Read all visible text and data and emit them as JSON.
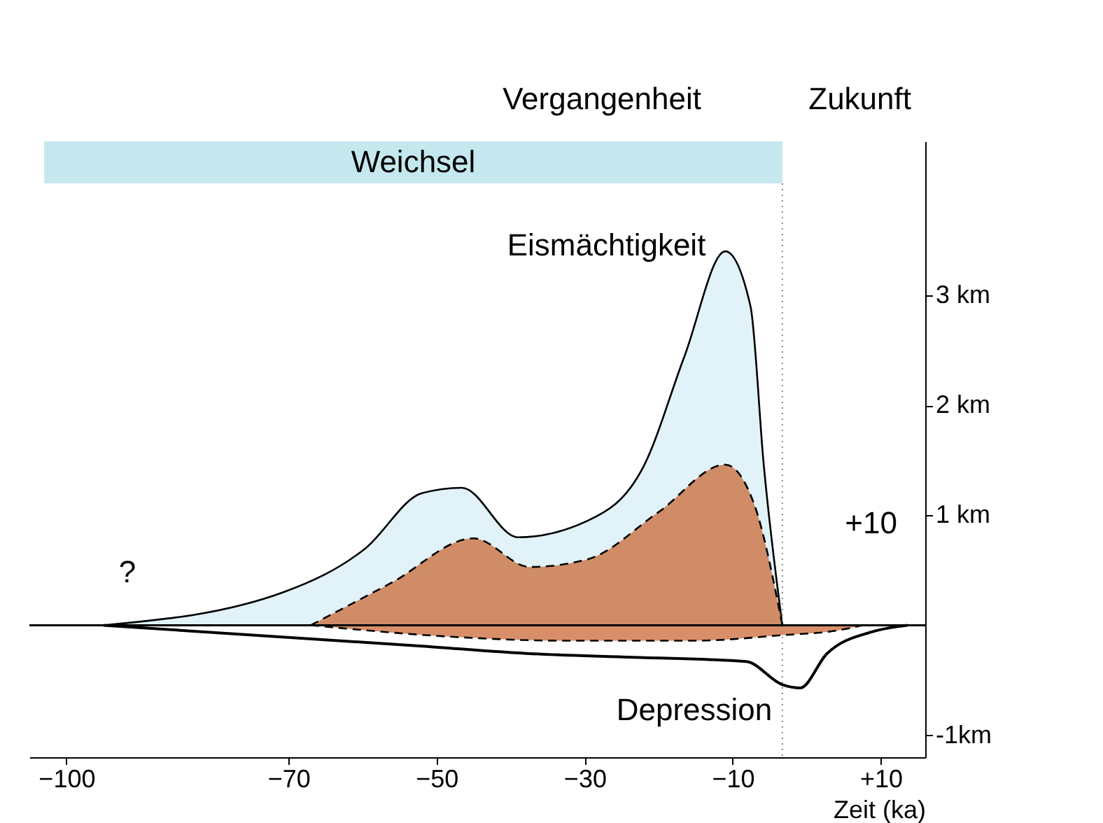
{
  "chart_data": {
    "type": "area",
    "xlabel": "Zeit (ka)",
    "xlim": [
      -105,
      16
    ],
    "xticks": [
      -100,
      -70,
      -50,
      -30,
      -10,
      {
        "value": 10,
        "label": "+10"
      }
    ],
    "ylim": [
      -1.2,
      4.4
    ],
    "yticks": [
      {
        "value": 3,
        "label": "3 km"
      },
      {
        "value": 2,
        "label": "2 km"
      },
      {
        "value": 1,
        "label": "1 km"
      },
      {
        "value": -1,
        "label": "-1km"
      }
    ],
    "series": [
      {
        "name": "Eismächtigkeit",
        "color": "#d4eef6",
        "line_style": "solid",
        "x": [
          -95,
          -70.7,
          -59.6,
          -52,
          -46.6,
          -39,
          -29.6,
          -22,
          -16.5,
          -11,
          -7.6,
          -5.8,
          -3.3
        ],
        "values": [
          0,
          0.3,
          0.7,
          1.2,
          1.25,
          0.8,
          0.95,
          1.45,
          2.45,
          3.4,
          2.9,
          1.45,
          0
        ]
      },
      {
        "color": "#c8602a",
        "line_style": "dashed",
        "x": [
          -67,
          -56,
          -45,
          -37.4,
          -29.6,
          -20,
          -11,
          -7.1,
          -3.3
        ],
        "values": [
          0,
          0.39,
          0.79,
          0.53,
          0.6,
          1.03,
          1.46,
          1.1,
          0
        ]
      },
      {
        "color": "#c8602a",
        "line_style": "dashed",
        "x": [
          -67,
          -46.6,
          -33.4,
          -15,
          -3.3,
          3.9,
          7.6
        ],
        "values": [
          0,
          -0.11,
          -0.14,
          -0.14,
          -0.09,
          -0.05,
          0
        ]
      },
      {
        "name": "Depression",
        "type": "line",
        "color": "#000000",
        "line_style": "solid",
        "x": [
          -95,
          -52,
          -37,
          -24,
          -8.2,
          -3.3,
          -0.9,
          2.7,
          8.8,
          13.6
        ],
        "values": [
          0,
          -0.19,
          -0.26,
          -0.29,
          -0.33,
          -0.54,
          -0.57,
          -0.26,
          -0.06,
          0
        ]
      }
    ],
    "bands": [
      {
        "axis": "x",
        "from": -103,
        "to": -3.3,
        "label": "Weichsel",
        "color": "#c5e8ef"
      }
    ],
    "ref_lines": [
      {
        "axis": "x",
        "value": -3.3,
        "line_style": "dotted",
        "color": "#888888"
      },
      {
        "axis": "y",
        "value": 0,
        "line_style": "solid",
        "color": "#000000"
      }
    ],
    "annotations": [
      "Vergangenheit",
      "Zukunft",
      "?",
      "+10"
    ],
    "grid": false
  }
}
